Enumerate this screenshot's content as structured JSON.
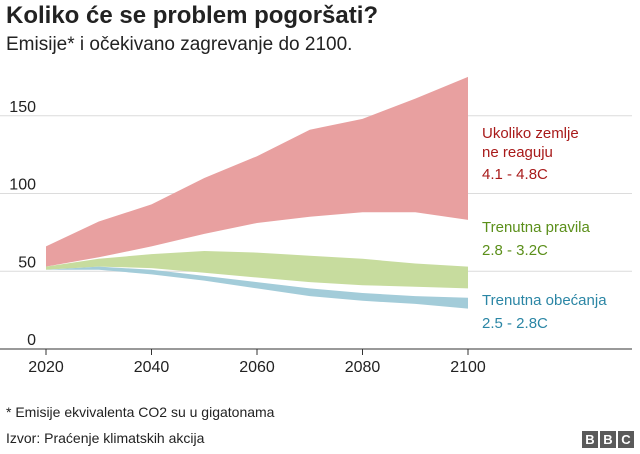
{
  "title": "Koliko će se problem pogoršati?",
  "subtitle": "Emisije* i očekivano zagrevanje do 2100.",
  "footnote": "* Emisije ekvivalenta CO2 su u gigatonama",
  "source": "Izvor: Praćenje klimatskih akcija",
  "logo": [
    "B",
    "B",
    "C"
  ],
  "chart_data": {
    "type": "area",
    "x": [
      2020,
      2030,
      2040,
      2050,
      2060,
      2070,
      2080,
      2090,
      2100
    ],
    "xticks": [
      "2020",
      "2040",
      "2060",
      "2080",
      "2100"
    ],
    "yticks": [
      "0",
      "50",
      "100",
      "150"
    ],
    "xlim": [
      2020,
      2100
    ],
    "ylim": [
      0,
      175
    ],
    "grid": "horizontal",
    "series": [
      {
        "name": "Ukoliko zemlje ne reaguju",
        "label_lines": [
          "Ukoliko zemlje",
          "ne reaguju"
        ],
        "range": "4.1 - 4.8C",
        "color": "#e8a0a0",
        "text_color": "#a81a1a",
        "upper": [
          66,
          82,
          93,
          110,
          124,
          141,
          148,
          161,
          175
        ],
        "lower": [
          53,
          59,
          66,
          74,
          81,
          85,
          88,
          88,
          83
        ]
      },
      {
        "name": "Trenutna pravila",
        "label_lines": [
          "Trenutna pravila"
        ],
        "range": "2.8 - 3.2C",
        "color": "#c7dc9e",
        "text_color": "#5b8f1a",
        "upper": [
          53,
          58,
          61,
          63,
          62,
          60,
          58,
          55,
          53
        ],
        "lower": [
          51,
          53,
          52,
          49,
          46,
          43,
          41,
          40,
          39
        ]
      },
      {
        "name": "Trenutna obećanja",
        "label_lines": [
          "Trenutna obećanja"
        ],
        "range": "2.5 - 2.8C",
        "color": "#a3ccd9",
        "text_color": "#2b86a5",
        "upper": [
          51,
          53,
          51,
          47,
          43,
          39,
          36,
          34,
          33
        ],
        "lower": [
          51,
          51,
          48,
          44,
          39,
          34,
          31,
          29,
          26
        ]
      }
    ]
  }
}
